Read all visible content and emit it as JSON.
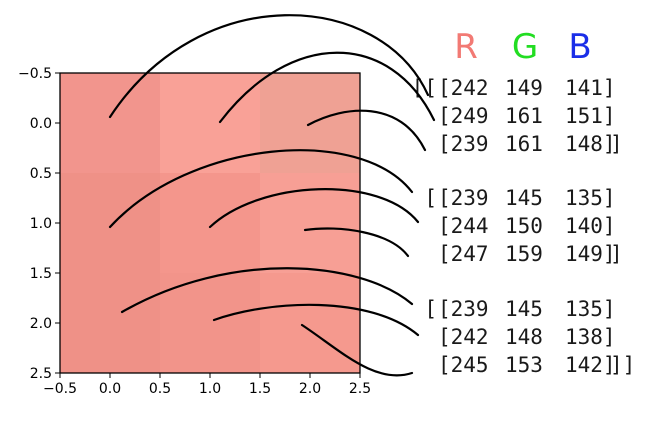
{
  "chart_data": {
    "type": "heatmap",
    "x_ticks": [
      "−0.5",
      "0.0",
      "0.5",
      "1.0",
      "1.5",
      "2.0",
      "2.5"
    ],
    "y_ticks": [
      "−0.5",
      "0.0",
      "0.5",
      "1.0",
      "1.5",
      "2.0",
      "2.5"
    ],
    "xlim": [
      -0.5,
      2.5
    ],
    "ylim": [
      2.5,
      -0.5
    ],
    "pixels": [
      [
        [
          242,
          149,
          141
        ],
        [
          249,
          161,
          151
        ],
        [
          239,
          161,
          148
        ]
      ],
      [
        [
          239,
          145,
          135
        ],
        [
          244,
          150,
          140
        ],
        [
          247,
          159,
          149
        ]
      ],
      [
        [
          239,
          145,
          135
        ],
        [
          242,
          148,
          138
        ],
        [
          245,
          153,
          142
        ]
      ]
    ]
  },
  "channel_headers": [
    {
      "label": "R",
      "color": "#f27a74"
    },
    {
      "label": "G",
      "color": "#22dd22"
    },
    {
      "label": "B",
      "color": "#1a2ee8"
    }
  ],
  "array_lines": [
    [
      "[[",
      "[242",
      "149",
      "141]"
    ],
    [
      "",
      "[249",
      "161",
      "151]"
    ],
    [
      "",
      "[239",
      "161",
      "148]",
      "]"
    ],
    [
      "[",
      "[239",
      "145",
      "135]"
    ],
    [
      "",
      "[244",
      "150",
      "140]"
    ],
    [
      "",
      "[247",
      "159",
      "149]",
      "]"
    ],
    [
      "[",
      "[239",
      "145",
      "135]"
    ],
    [
      "",
      "[242",
      "148",
      "138]"
    ],
    [
      "",
      "[245",
      "153",
      "142]",
      "]]"
    ]
  ]
}
